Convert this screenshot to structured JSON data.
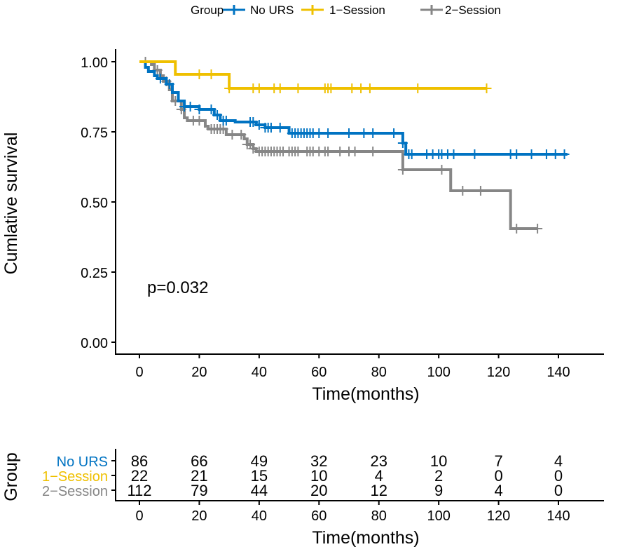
{
  "chart_data": {
    "type": "line",
    "subtype": "kaplan-meier step",
    "ylabel": "Cumlative survival",
    "xlabel": "Time(months)",
    "xlim": [
      -6,
      158
    ],
    "ylim": [
      0,
      1
    ],
    "x_ticks": [
      0,
      20,
      40,
      60,
      80,
      100,
      120,
      140
    ],
    "y_ticks": [
      "0.00",
      "0.25",
      "0.50",
      "0.75",
      "1.00"
    ],
    "y_tick_values": [
      0,
      0.25,
      0.5,
      0.75,
      1.0
    ],
    "annotation": "p=0.032",
    "legend": {
      "title": "Group",
      "position": "top"
    },
    "series": [
      {
        "name": "No URS",
        "color": "#0073C2",
        "steps": [
          [
            0,
            1
          ],
          [
            2,
            0.98
          ],
          [
            3,
            0.965
          ],
          [
            5,
            0.95
          ],
          [
            6,
            0.94
          ],
          [
            9,
            0.92
          ],
          [
            11,
            0.89
          ],
          [
            13,
            0.86
          ],
          [
            15,
            0.84
          ],
          [
            20,
            0.83
          ],
          [
            25,
            0.81
          ],
          [
            27,
            0.79
          ],
          [
            32,
            0.785
          ],
          [
            39,
            0.775
          ],
          [
            42,
            0.765
          ],
          [
            50,
            0.745
          ],
          [
            88,
            0.71
          ],
          [
            89,
            0.67
          ]
        ],
        "end": 143,
        "censors": [
          7,
          10,
          15,
          17,
          20,
          24,
          26,
          28,
          29,
          37,
          38,
          40,
          42,
          43,
          44,
          47,
          51,
          52,
          53,
          54,
          55,
          56,
          57,
          58,
          60,
          63,
          70,
          75,
          78,
          85,
          88,
          90,
          91,
          96,
          98,
          100,
          101,
          103,
          105,
          112,
          124,
          126,
          131,
          136,
          139,
          142
        ]
      },
      {
        "name": "1-Session",
        "color": "#EFC000",
        "steps": [
          [
            0,
            1
          ],
          [
            12,
            0.955
          ],
          [
            30,
            0.905
          ]
        ],
        "end": 116,
        "censors": [
          20,
          24,
          30,
          38,
          40,
          45,
          47,
          53,
          62,
          63,
          64,
          71,
          74,
          77,
          93,
          116
        ]
      },
      {
        "name": "2-Session",
        "color": "#868686",
        "steps": [
          [
            0,
            1
          ],
          [
            4,
            0.99
          ],
          [
            5,
            0.97
          ],
          [
            7,
            0.95
          ],
          [
            8,
            0.93
          ],
          [
            10,
            0.9
          ],
          [
            11,
            0.86
          ],
          [
            14,
            0.83
          ],
          [
            15,
            0.8
          ],
          [
            16,
            0.79
          ],
          [
            22,
            0.77
          ],
          [
            23,
            0.76
          ],
          [
            29,
            0.74
          ],
          [
            35,
            0.725
          ],
          [
            36,
            0.705
          ],
          [
            38,
            0.69
          ],
          [
            39,
            0.68
          ],
          [
            88,
            0.615
          ],
          [
            104,
            0.54
          ],
          [
            124,
            0.405
          ]
        ],
        "end": 133,
        "censors": [
          2,
          6,
          9,
          12,
          14,
          18,
          20,
          24,
          25,
          26,
          27,
          28,
          31,
          34,
          36,
          37,
          38,
          40,
          41,
          42,
          43,
          44,
          45,
          46,
          47,
          48,
          50,
          51,
          52,
          53,
          56,
          57,
          58,
          60,
          62,
          63,
          67,
          70,
          72,
          78,
          88,
          101,
          108,
          114,
          126,
          133
        ]
      }
    ],
    "risk_table": {
      "title": "Group",
      "xlabel": "Time(months)",
      "times": [
        0,
        20,
        40,
        60,
        80,
        100,
        120,
        140
      ],
      "rows": [
        {
          "name": "No URS",
          "color": "#0073C2",
          "counts": [
            86,
            66,
            49,
            32,
            23,
            10,
            7,
            4
          ]
        },
        {
          "name": "1−Session",
          "color": "#EFC000",
          "counts": [
            22,
            21,
            15,
            10,
            4,
            2,
            0,
            0
          ]
        },
        {
          "name": "2−Session",
          "color": "#868686",
          "counts": [
            112,
            79,
            44,
            20,
            12,
            9,
            4,
            0
          ]
        }
      ]
    }
  },
  "legend_labels": [
    "No URS",
    "1−Session",
    "2−Session"
  ]
}
